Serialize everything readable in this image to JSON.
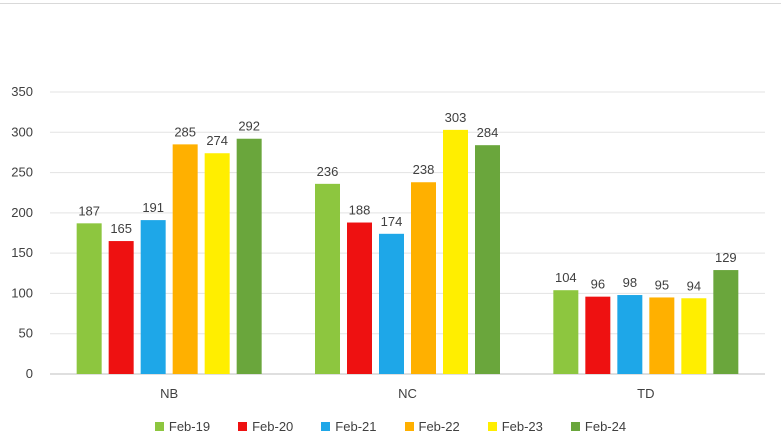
{
  "chart_data": {
    "type": "bar",
    "title": "",
    "xlabel": "",
    "ylabel": "",
    "categories": [
      "NB",
      "NC",
      "TD"
    ],
    "ylim": [
      0,
      350
    ],
    "yticks": [
      0,
      50,
      100,
      150,
      200,
      250,
      300,
      350
    ],
    "grid": true,
    "legend_position": "bottom",
    "data_labels": true,
    "series": [
      {
        "name": "Feb-19",
        "color": "#8dc63f",
        "values": [
          187,
          236,
          104
        ]
      },
      {
        "name": "Feb-20",
        "color": "#ee1111",
        "values": [
          165,
          188,
          96
        ]
      },
      {
        "name": "Feb-21",
        "color": "#1ea7e8",
        "values": [
          191,
          174,
          98
        ]
      },
      {
        "name": "Feb-22",
        "color": "#ffb000",
        "values": [
          285,
          238,
          95
        ]
      },
      {
        "name": "Feb-23",
        "color": "#ffee00",
        "values": [
          274,
          303,
          94
        ]
      },
      {
        "name": "Feb-24",
        "color": "#6aa63c",
        "values": [
          292,
          284,
          129
        ]
      }
    ]
  }
}
